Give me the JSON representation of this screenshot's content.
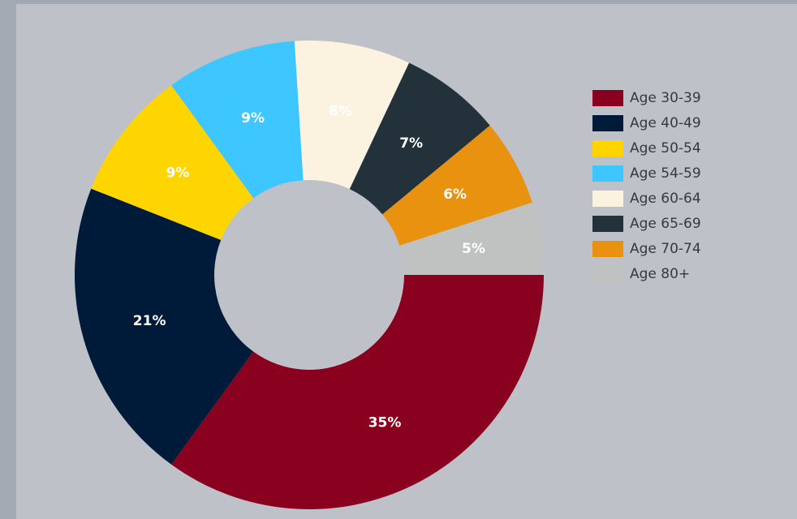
{
  "chart_data": {
    "type": "pie",
    "categories": [
      "Age 30-39",
      "Age 40-49",
      "Age 50-54",
      "Age 54-59",
      "Age 60-64",
      "Age 65-69",
      "Age 70-74",
      "Age 80+"
    ],
    "values": [
      35,
      21,
      9,
      9,
      8,
      7,
      6,
      5
    ],
    "value_labels": [
      "35%",
      "21%",
      "9%",
      "9%",
      "8%",
      "7%",
      "6%",
      "5%"
    ],
    "colors": [
      "#8a001f",
      "#001b3a",
      "#ffd500",
      "#3dc6ff",
      "#fbf3df",
      "#23313b",
      "#e9920f",
      "#c0c1c1"
    ],
    "legend": "right"
  }
}
